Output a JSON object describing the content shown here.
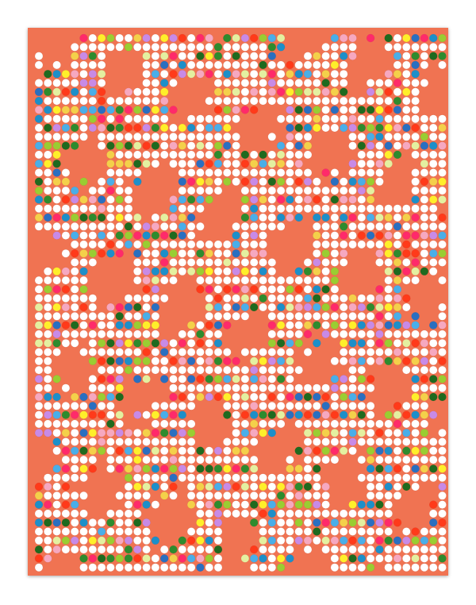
{
  "artwork": {
    "background_color": "#f07352",
    "dot_white": "#ffffff",
    "palette": [
      "#4aaee8",
      "#1d8fc9",
      "#2a6fc0",
      "#9acd32",
      "#c88ae6",
      "#e4f0a0",
      "#f6a8c0",
      "#2e8b2e",
      "#1f6a1f",
      "#f4d04a",
      "#ffef2a",
      "#ff2a6a",
      "#ff3a1a",
      "#f2f2f2"
    ]
  }
}
